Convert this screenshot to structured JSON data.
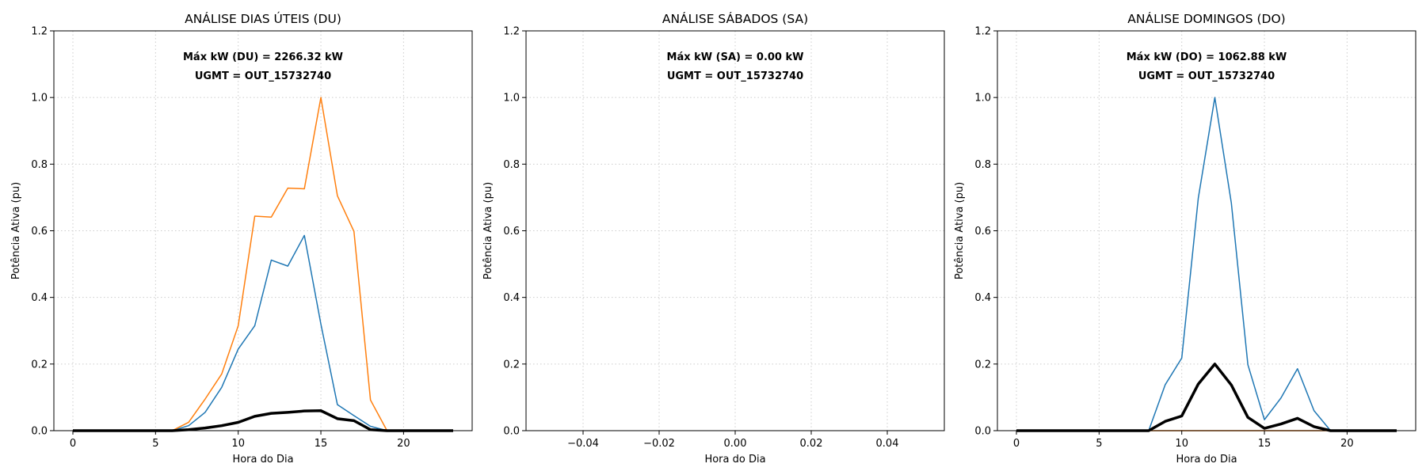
{
  "chart_data": [
    {
      "type": "line",
      "title": "ANÁLISE DIAS ÚTEIS (DU)",
      "xlabel": "Hora do Dia",
      "ylabel": "Potência Ativa (pu)",
      "xlim": [
        -1.15,
        24.15
      ],
      "ylim": [
        0,
        1.2
      ],
      "xticks": [
        0,
        5,
        10,
        15,
        20
      ],
      "xtick_labels": [
        "0",
        "5",
        "10",
        "15",
        "20"
      ],
      "yticks": [
        0.0,
        0.2,
        0.4,
        0.6,
        0.8,
        1.0,
        1.2
      ],
      "ytick_labels": [
        "0.0",
        "0.2",
        "0.4",
        "0.6",
        "0.8",
        "1.0",
        "1.2"
      ],
      "grid": true,
      "annotations": [
        "Máx kW (DU) = 2266.32 kW",
        "UGMT = OUT_15732740"
      ],
      "x": [
        0,
        1,
        2,
        3,
        4,
        5,
        6,
        7,
        8,
        9,
        10,
        11,
        12,
        13,
        14,
        15,
        16,
        17,
        18,
        19,
        20,
        21,
        22,
        23
      ],
      "series": [
        {
          "color": "#1f77b4",
          "width": 1.5,
          "values": [
            0,
            0,
            0,
            0,
            0,
            0,
            0,
            0.015,
            0.055,
            0.13,
            0.245,
            0.315,
            0.512,
            0.494,
            0.586,
            0.32,
            0.078,
            0.045,
            0.013,
            0,
            0,
            0,
            0,
            0
          ]
        },
        {
          "color": "#ff7f0e",
          "width": 1.5,
          "values": [
            0,
            0,
            0,
            0,
            0,
            0,
            0,
            0.025,
            0.095,
            0.17,
            0.315,
            0.644,
            0.641,
            0.728,
            0.726,
            1.0,
            0.705,
            0.598,
            0.092,
            0,
            0,
            0,
            0,
            0
          ]
        },
        {
          "color": "#000000",
          "width": 3.5,
          "values": [
            0,
            0,
            0,
            0,
            0,
            0,
            0,
            0.003,
            0.008,
            0.015,
            0.025,
            0.043,
            0.052,
            0.055,
            0.059,
            0.06,
            0.036,
            0.03,
            0.003,
            0,
            0,
            0,
            0,
            0
          ]
        }
      ]
    },
    {
      "type": "line",
      "title": "ANÁLISE SÁBADOS (SA)",
      "xlabel": "Hora do Dia",
      "ylabel": "Potência Ativa (pu)",
      "xlim": [
        -0.055,
        0.055
      ],
      "ylim": [
        0,
        1.2
      ],
      "xticks": [
        -0.04,
        -0.02,
        0.0,
        0.02,
        0.04
      ],
      "xtick_labels": [
        "−0.04",
        "−0.02",
        "0.00",
        "0.02",
        "0.04"
      ],
      "yticks": [
        0.0,
        0.2,
        0.4,
        0.6,
        0.8,
        1.0,
        1.2
      ],
      "ytick_labels": [
        "0.0",
        "0.2",
        "0.4",
        "0.6",
        "0.8",
        "1.0",
        "1.2"
      ],
      "grid": true,
      "annotations": [
        "Máx kW (SA) = 0.00 kW",
        "UGMT = OUT_15732740"
      ],
      "x": [],
      "series": []
    },
    {
      "type": "line",
      "title": "ANÁLISE DOMINGOS (DO)",
      "xlabel": "Hora do Dia",
      "ylabel": "Potência Ativa (pu)",
      "xlim": [
        -1.15,
        24.15
      ],
      "ylim": [
        0,
        1.2
      ],
      "xticks": [
        0,
        5,
        10,
        15,
        20
      ],
      "xtick_labels": [
        "0",
        "5",
        "10",
        "15",
        "20"
      ],
      "yticks": [
        0.0,
        0.2,
        0.4,
        0.6,
        0.8,
        1.0,
        1.2
      ],
      "ytick_labels": [
        "0.0",
        "0.2",
        "0.4",
        "0.6",
        "0.8",
        "1.0",
        "1.2"
      ],
      "grid": true,
      "annotations": [
        "Máx kW (DO) = 1062.88 kW",
        "UGMT = OUT_15732740"
      ],
      "x": [
        0,
        1,
        2,
        3,
        4,
        5,
        6,
        7,
        8,
        9,
        10,
        11,
        12,
        13,
        14,
        15,
        16,
        17,
        18,
        19,
        20,
        21,
        22,
        23
      ],
      "series": [
        {
          "color": "#ff7f0e",
          "width": 1.5,
          "values": [
            0,
            0,
            0,
            0,
            0,
            0,
            0,
            0,
            0,
            0,
            0,
            0,
            0,
            0,
            0,
            0,
            0,
            0,
            0,
            0,
            0,
            0,
            0,
            0
          ]
        },
        {
          "color": "#1f77b4",
          "width": 1.5,
          "values": [
            0,
            0,
            0,
            0,
            0,
            0,
            0,
            0,
            0,
            0.138,
            0.218,
            0.698,
            1.0,
            0.683,
            0.198,
            0.033,
            0.098,
            0.186,
            0.06,
            0,
            0,
            0,
            0,
            0
          ]
        },
        {
          "color": "#000000",
          "width": 3.5,
          "values": [
            0,
            0,
            0,
            0,
            0,
            0,
            0,
            0,
            0,
            0.028,
            0.044,
            0.14,
            0.2,
            0.137,
            0.04,
            0.007,
            0.02,
            0.037,
            0.012,
            0,
            0,
            0,
            0,
            0
          ]
        }
      ]
    }
  ]
}
